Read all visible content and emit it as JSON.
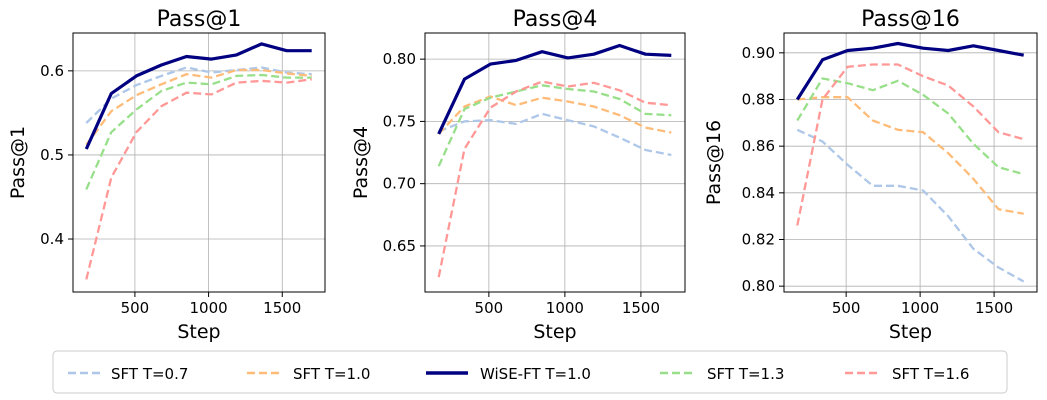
{
  "colors": {
    "SFT T=0.7": "#aec7e8",
    "SFT T=1.0": "#ffbb78",
    "WiSE-FT T=1.0": "#000080",
    "SFT T=1.3": "#98df8a",
    "SFT T=1.6": "#ff9896"
  },
  "legend": {
    "placement": "bottom",
    "entries": [
      "SFT T=0.7",
      "SFT T=1.0",
      "WiSE-FT T=1.0",
      "SFT T=1.3",
      "SFT T=1.6"
    ]
  },
  "chart_data": [
    {
      "type": "line",
      "title": "Pass@1",
      "xlabel": "Step",
      "ylabel": "Pass@1",
      "grid": true,
      "xlim": [
        80,
        1790
      ],
      "ylim": [
        0.337,
        0.645
      ],
      "xticks": [
        500,
        1000,
        1500
      ],
      "yticks": [
        0.4,
        0.5,
        0.6
      ],
      "ytick_labels": [
        "0.4",
        "0.5",
        "0.6"
      ],
      "x": [
        170,
        340,
        510,
        680,
        850,
        1020,
        1190,
        1360,
        1530,
        1700
      ],
      "series": [
        {
          "name": "SFT T=0.7",
          "style": "dashed",
          "values": [
            0.538,
            0.567,
            0.583,
            0.594,
            0.604,
            0.598,
            0.601,
            0.604,
            0.598,
            0.596
          ]
        },
        {
          "name": "SFT T=1.0",
          "style": "dashed",
          "values": [
            0.512,
            0.552,
            0.571,
            0.584,
            0.596,
            0.592,
            0.601,
            0.601,
            0.597,
            0.594
          ]
        },
        {
          "name": "WiSE-FT T=1.0",
          "style": "solid",
          "values": [
            0.507,
            0.573,
            0.594,
            0.607,
            0.617,
            0.614,
            0.619,
            0.632,
            0.624,
            0.624
          ]
        },
        {
          "name": "SFT T=1.3",
          "style": "dashed",
          "values": [
            0.459,
            0.527,
            0.554,
            0.576,
            0.586,
            0.584,
            0.594,
            0.595,
            0.592,
            0.592
          ]
        },
        {
          "name": "SFT T=1.6",
          "style": "dashed",
          "values": [
            0.352,
            0.473,
            0.527,
            0.558,
            0.574,
            0.572,
            0.586,
            0.588,
            0.586,
            0.59
          ]
        }
      ]
    },
    {
      "type": "line",
      "title": "Pass@4",
      "xlabel": "Step",
      "ylabel": "Pass@4",
      "grid": true,
      "xlim": [
        80,
        1790
      ],
      "ylim": [
        0.613,
        0.821
      ],
      "xticks": [
        500,
        1000,
        1500
      ],
      "yticks": [
        0.65,
        0.7,
        0.75,
        0.8
      ],
      "ytick_labels": [
        "0.65",
        "0.70",
        "0.75",
        "0.80"
      ],
      "x": [
        170,
        340,
        510,
        680,
        850,
        1020,
        1190,
        1360,
        1530,
        1700
      ],
      "series": [
        {
          "name": "SFT T=0.7",
          "style": "dashed",
          "values": [
            0.742,
            0.75,
            0.751,
            0.748,
            0.756,
            0.751,
            0.746,
            0.737,
            0.727,
            0.723
          ]
        },
        {
          "name": "SFT T=1.0",
          "style": "dashed",
          "values": [
            0.74,
            0.762,
            0.77,
            0.763,
            0.769,
            0.766,
            0.762,
            0.755,
            0.745,
            0.741
          ]
        },
        {
          "name": "WiSE-FT T=1.0",
          "style": "solid",
          "values": [
            0.74,
            0.784,
            0.796,
            0.799,
            0.806,
            0.801,
            0.804,
            0.811,
            0.804,
            0.803
          ]
        },
        {
          "name": "SFT T=1.3",
          "style": "dashed",
          "values": [
            0.714,
            0.76,
            0.769,
            0.774,
            0.779,
            0.776,
            0.774,
            0.768,
            0.756,
            0.755
          ]
        },
        {
          "name": "SFT T=1.6",
          "style": "dashed",
          "values": [
            0.625,
            0.728,
            0.761,
            0.774,
            0.782,
            0.778,
            0.781,
            0.775,
            0.765,
            0.763
          ]
        }
      ]
    },
    {
      "type": "line",
      "title": "Pass@16",
      "xlabel": "Step",
      "ylabel": "Pass@16",
      "grid": true,
      "xlim": [
        80,
        1790
      ],
      "ylim": [
        0.7975,
        0.9085
      ],
      "xticks": [
        500,
        1000,
        1500
      ],
      "yticks": [
        0.8,
        0.82,
        0.84,
        0.86,
        0.88,
        0.9
      ],
      "ytick_labels": [
        "0.80",
        "0.82",
        "0.84",
        "0.86",
        "0.88",
        "0.90"
      ],
      "x": [
        170,
        340,
        510,
        680,
        850,
        1020,
        1190,
        1360,
        1530,
        1700
      ],
      "series": [
        {
          "name": "SFT T=0.7",
          "style": "dashed",
          "values": [
            0.867,
            0.862,
            0.852,
            0.843,
            0.843,
            0.841,
            0.83,
            0.816,
            0.808,
            0.802
          ]
        },
        {
          "name": "SFT T=1.0",
          "style": "dashed",
          "values": [
            0.88,
            0.881,
            0.881,
            0.871,
            0.867,
            0.866,
            0.857,
            0.846,
            0.833,
            0.831
          ]
        },
        {
          "name": "WiSE-FT T=1.0",
          "style": "solid",
          "values": [
            0.88,
            0.897,
            0.901,
            0.902,
            0.904,
            0.902,
            0.901,
            0.903,
            0.901,
            0.899
          ]
        },
        {
          "name": "SFT T=1.3",
          "style": "dashed",
          "values": [
            0.871,
            0.889,
            0.887,
            0.884,
            0.888,
            0.882,
            0.874,
            0.861,
            0.851,
            0.848
          ]
        },
        {
          "name": "SFT T=1.6",
          "style": "dashed",
          "values": [
            0.826,
            0.88,
            0.894,
            0.895,
            0.895,
            0.89,
            0.886,
            0.877,
            0.866,
            0.863
          ]
        }
      ]
    }
  ]
}
